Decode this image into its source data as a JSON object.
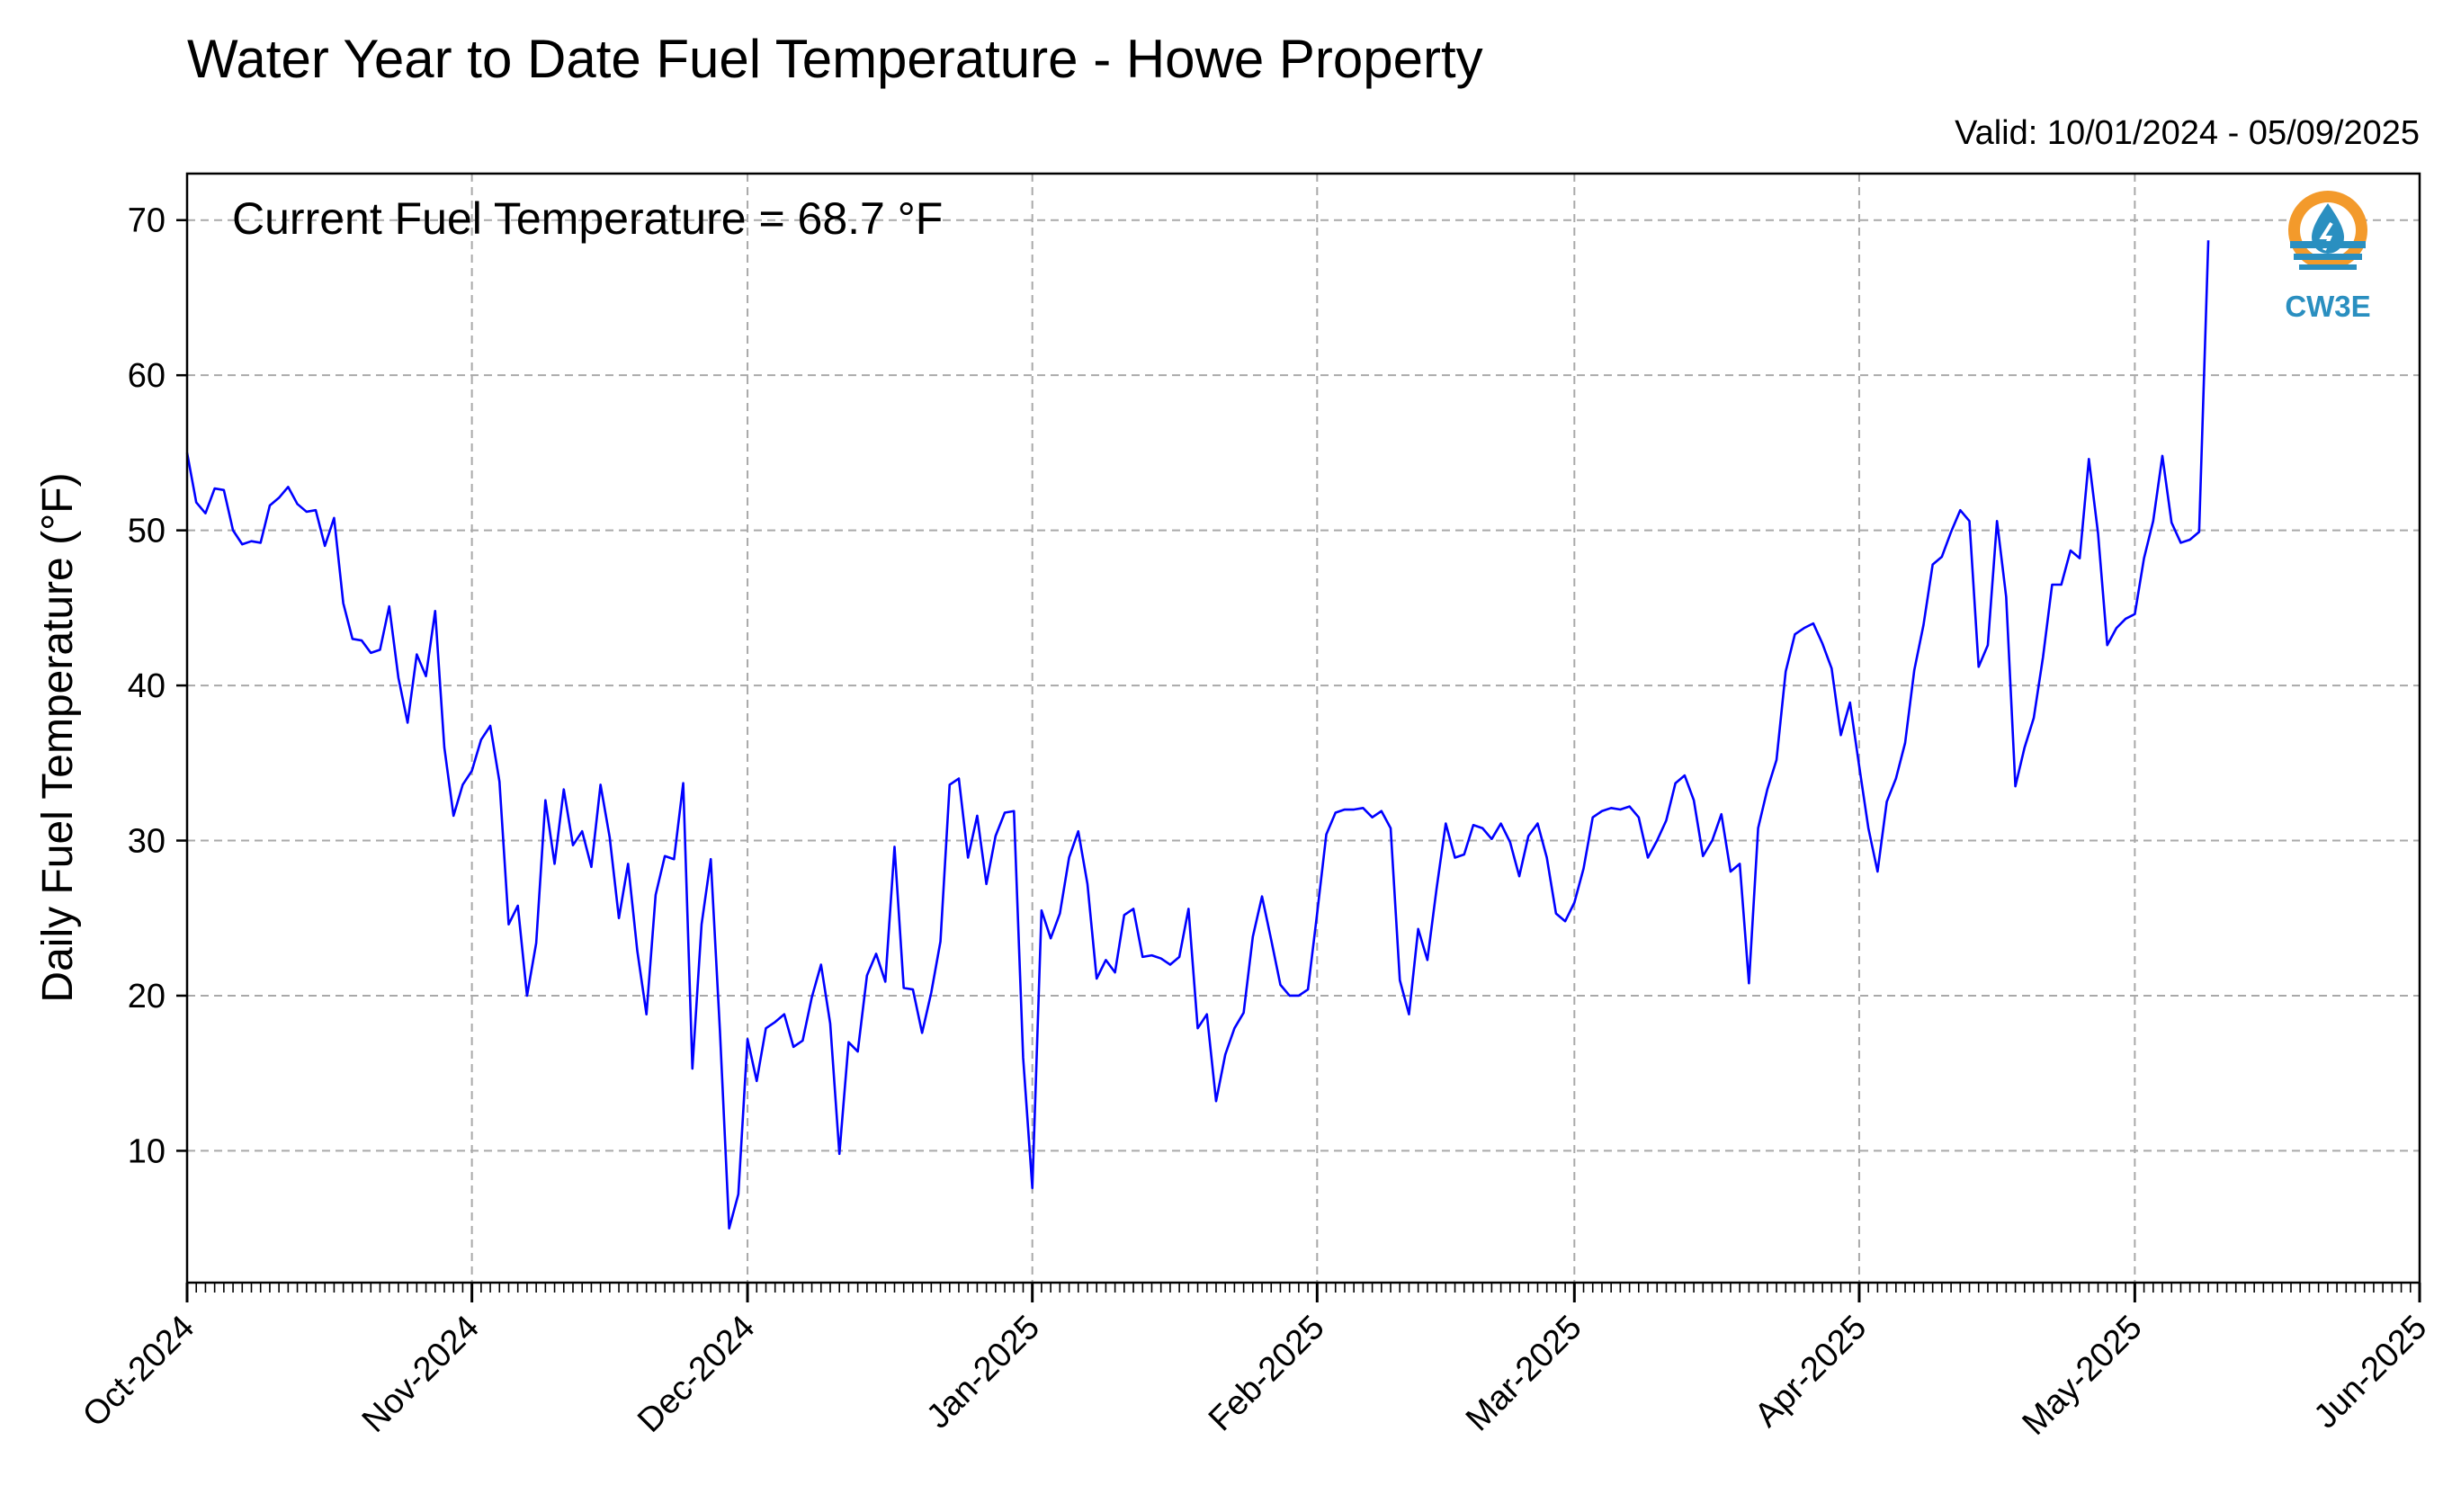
{
  "chart_data": {
    "type": "line",
    "title": "Water Year to Date Fuel Temperature - Howe Property",
    "subtitle": "Valid: 10/01/2024 - 05/09/2025",
    "annotation": "Current Fuel Temperature = 68.7 °F",
    "ylabel": "Daily Fuel Temperature (°F)",
    "xlabel": "",
    "ylim": [
      1.5,
      73
    ],
    "yticks": [
      10,
      20,
      30,
      40,
      50,
      60,
      70
    ],
    "xlim": [
      "2024-10-01",
      "2025-06-01"
    ],
    "xticks": [
      {
        "date": "2024-10-01",
        "label": "Oct-2024"
      },
      {
        "date": "2024-11-01",
        "label": "Nov-2024"
      },
      {
        "date": "2024-12-01",
        "label": "Dec-2024"
      },
      {
        "date": "2025-01-01",
        "label": "Jan-2025"
      },
      {
        "date": "2025-02-01",
        "label": "Feb-2025"
      },
      {
        "date": "2025-03-01",
        "label": "Mar-2025"
      },
      {
        "date": "2025-04-01",
        "label": "Apr-2025"
      },
      {
        "date": "2025-05-01",
        "label": "May-2025"
      },
      {
        "date": "2025-06-01",
        "label": "Jun-2025"
      }
    ],
    "grid": true,
    "line_color": "#0000ff",
    "series": [
      {
        "start_date": "2024-10-01",
        "values": [
          55.0,
          51.8,
          51.1,
          52.7,
          52.6,
          50.0,
          49.1,
          49.3,
          49.2,
          51.6,
          52.1,
          52.8,
          51.7,
          51.2,
          51.3,
          49.0,
          50.8,
          45.3,
          43.0,
          42.9,
          42.1,
          42.3,
          45.1,
          40.5,
          37.6,
          42.0,
          40.6,
          44.8,
          36.0,
          31.6,
          33.6,
          34.5,
          36.5,
          37.4,
          33.8,
          24.6,
          25.8,
          20.0,
          23.4,
          32.6,
          28.5,
          33.3,
          29.7,
          30.6,
          28.3,
          33.6,
          30.2,
          25.0,
          28.5,
          22.9,
          18.8,
          26.5,
          29.0,
          28.8,
          33.7,
          15.3,
          24.6,
          28.8,
          17.7,
          5.0,
          7.2,
          17.2,
          14.5,
          17.9,
          18.3,
          18.8,
          16.7,
          17.1,
          19.9,
          22.0,
          18.2,
          9.8,
          17.0,
          16.4,
          21.3,
          22.7,
          20.9,
          29.6,
          20.5,
          20.4,
          17.6,
          20.2,
          23.5,
          33.6,
          34.0,
          28.9,
          31.6,
          27.2,
          30.3,
          31.8,
          31.9,
          16.0,
          7.6,
          25.5,
          23.7,
          25.3,
          28.9,
          30.6,
          27.2,
          21.1,
          22.3,
          21.5,
          25.2,
          25.6,
          22.5,
          22.6,
          22.4,
          22.0,
          22.5,
          25.6,
          17.9,
          18.8,
          13.2,
          16.2,
          17.9,
          18.9,
          23.8,
          26.4,
          23.6,
          20.7,
          20.0,
          20.0,
          20.4,
          25.3,
          30.4,
          31.8,
          32.0,
          32.0,
          32.1,
          31.5,
          31.9,
          30.8,
          21.0,
          18.8,
          24.3,
          22.3,
          26.9,
          31.1,
          28.9,
          29.1,
          31.0,
          30.8,
          30.1,
          31.1,
          29.9,
          27.7,
          30.3,
          31.1,
          28.9,
          25.3,
          24.8,
          26.0,
          28.2,
          31.5,
          31.9,
          32.1,
          32.0,
          32.2,
          31.5,
          28.9,
          30.0,
          31.3,
          33.7,
          34.2,
          32.6,
          29.0,
          30.0,
          31.7,
          28.0,
          28.5,
          20.8,
          30.8,
          33.3,
          35.2,
          40.9,
          43.3,
          43.7,
          44.0,
          42.7,
          41.1,
          36.8,
          38.9,
          34.8,
          30.8,
          28.0,
          32.5,
          34.0,
          36.3,
          41.0,
          43.9,
          47.8,
          48.3,
          49.9,
          51.3,
          50.6,
          41.2,
          42.6,
          50.6,
          45.7,
          33.5,
          36.0,
          37.9,
          41.8,
          46.5,
          46.5,
          48.7,
          48.2,
          54.6,
          49.8,
          42.6,
          43.7,
          44.3,
          44.6,
          48.2,
          50.6,
          54.8,
          50.5,
          49.2,
          49.4,
          49.9,
          68.7
        ]
      }
    ]
  },
  "logo": {
    "text": "CW3E",
    "ring_color": "#f39a2b",
    "drop_color": "#2a8fc0"
  }
}
